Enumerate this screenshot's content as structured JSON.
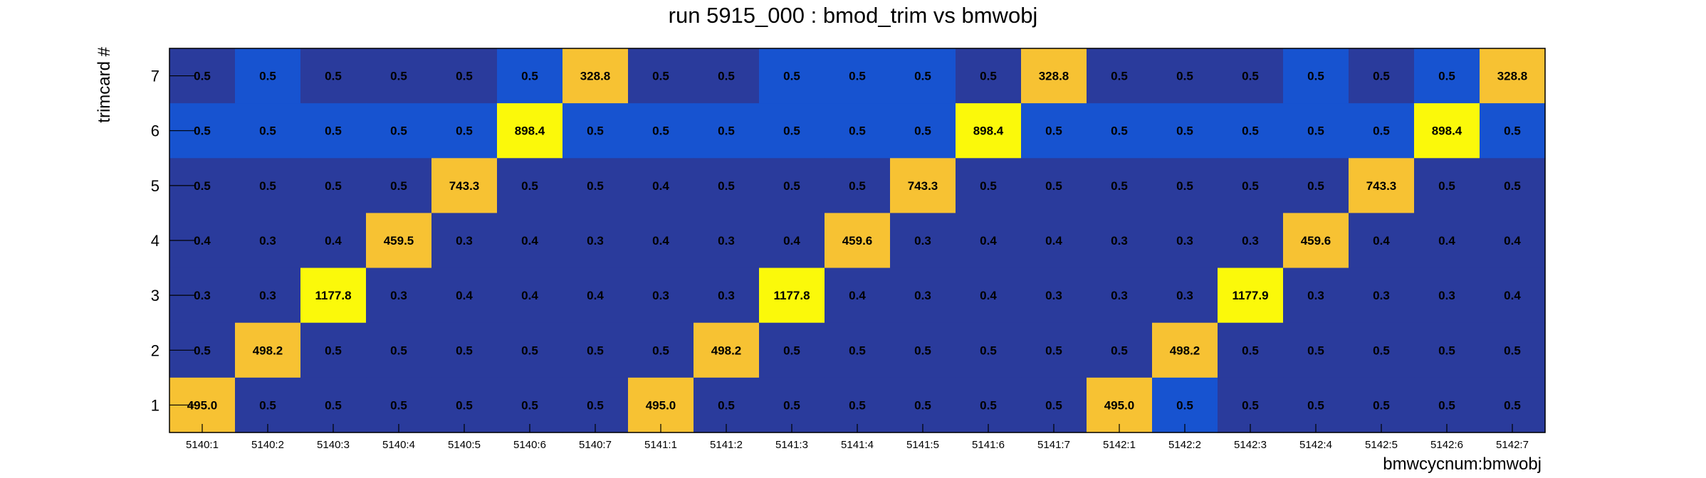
{
  "chart_data": {
    "type": "heatmap",
    "title": "run 5915_000 : bmod_trim vs bmwobj",
    "xlabel": "bmwcycnum:bmwobj",
    "ylabel": "trimcard #",
    "x_categories": [
      "5140:1",
      "5140:2",
      "5140:3",
      "5140:4",
      "5140:5",
      "5140:6",
      "5140:7",
      "5141:1",
      "5141:2",
      "5141:3",
      "5141:4",
      "5141:5",
      "5141:6",
      "5141:7",
      "5142:1",
      "5142:2",
      "5142:3",
      "5142:4",
      "5142:5",
      "5142:6",
      "5142:7"
    ],
    "y_categories": [
      "7",
      "6",
      "5",
      "4",
      "3",
      "2",
      "1"
    ],
    "labels": [
      [
        "0.5",
        "0.5",
        "0.5",
        "0.5",
        "0.5",
        "0.5",
        "328.8",
        "0.5",
        "0.5",
        "0.5",
        "0.5",
        "0.5",
        "0.5",
        "328.8",
        "0.5",
        "0.5",
        "0.5",
        "0.5",
        "0.5",
        "0.5",
        "328.8"
      ],
      [
        "0.5",
        "0.5",
        "0.5",
        "0.5",
        "0.5",
        "898.4",
        "0.5",
        "0.5",
        "0.5",
        "0.5",
        "0.5",
        "0.5",
        "898.4",
        "0.5",
        "0.5",
        "0.5",
        "0.5",
        "0.5",
        "0.5",
        "898.4",
        "0.5"
      ],
      [
        "0.5",
        "0.5",
        "0.5",
        "0.5",
        "743.3",
        "0.5",
        "0.5",
        "0.4",
        "0.5",
        "0.5",
        "0.5",
        "743.3",
        "0.5",
        "0.5",
        "0.5",
        "0.5",
        "0.5",
        "0.5",
        "743.3",
        "0.5",
        "0.5"
      ],
      [
        "0.4",
        "0.3",
        "0.4",
        "459.5",
        "0.3",
        "0.4",
        "0.3",
        "0.4",
        "0.3",
        "0.4",
        "459.6",
        "0.3",
        "0.4",
        "0.4",
        "0.3",
        "0.3",
        "0.3",
        "459.6",
        "0.4",
        "0.4",
        "0.4"
      ],
      [
        "0.3",
        "0.3",
        "1177.8",
        "0.3",
        "0.4",
        "0.4",
        "0.4",
        "0.3",
        "0.3",
        "1177.8",
        "0.4",
        "0.3",
        "0.4",
        "0.3",
        "0.3",
        "0.3",
        "1177.9",
        "0.3",
        "0.3",
        "0.3",
        "0.4"
      ],
      [
        "0.5",
        "498.2",
        "0.5",
        "0.5",
        "0.5",
        "0.5",
        "0.5",
        "0.5",
        "498.2",
        "0.5",
        "0.5",
        "0.5",
        "0.5",
        "0.5",
        "0.5",
        "498.2",
        "0.5",
        "0.5",
        "0.5",
        "0.5",
        "0.5"
      ],
      [
        "495.0",
        "0.5",
        "0.5",
        "0.5",
        "0.5",
        "0.5",
        "0.5",
        "495.0",
        "0.5",
        "0.5",
        "0.5",
        "0.5",
        "0.5",
        "0.5",
        "495.0",
        "0.5",
        "0.5",
        "0.5",
        "0.5",
        "0.5",
        "0.5"
      ]
    ],
    "colors": {
      "dark_blue": "#2a3b9c",
      "light_blue": "#1753d0",
      "gold": "#f7c233",
      "yellow": "#fbf90a"
    },
    "cell_colors": [
      [
        "dark_blue",
        "light_blue",
        "dark_blue",
        "dark_blue",
        "dark_blue",
        "light_blue",
        "gold",
        "dark_blue",
        "dark_blue",
        "light_blue",
        "light_blue",
        "light_blue",
        "dark_blue",
        "gold",
        "dark_blue",
        "dark_blue",
        "dark_blue",
        "light_blue",
        "dark_blue",
        "light_blue",
        "gold"
      ],
      [
        "light_blue",
        "light_blue",
        "light_blue",
        "light_blue",
        "light_blue",
        "yellow",
        "light_blue",
        "light_blue",
        "light_blue",
        "light_blue",
        "light_blue",
        "light_blue",
        "yellow",
        "light_blue",
        "light_blue",
        "light_blue",
        "light_blue",
        "light_blue",
        "light_blue",
        "yellow",
        "light_blue"
      ],
      [
        "dark_blue",
        "dark_blue",
        "dark_blue",
        "dark_blue",
        "gold",
        "dark_blue",
        "dark_blue",
        "dark_blue",
        "dark_blue",
        "dark_blue",
        "dark_blue",
        "gold",
        "dark_blue",
        "dark_blue",
        "dark_blue",
        "dark_blue",
        "dark_blue",
        "dark_blue",
        "gold",
        "dark_blue",
        "dark_blue"
      ],
      [
        "dark_blue",
        "dark_blue",
        "dark_blue",
        "gold",
        "dark_blue",
        "dark_blue",
        "dark_blue",
        "dark_blue",
        "dark_blue",
        "dark_blue",
        "gold",
        "dark_blue",
        "dark_blue",
        "dark_blue",
        "dark_blue",
        "dark_blue",
        "dark_blue",
        "gold",
        "dark_blue",
        "dark_blue",
        "dark_blue"
      ],
      [
        "dark_blue",
        "dark_blue",
        "yellow",
        "dark_blue",
        "dark_blue",
        "dark_blue",
        "dark_blue",
        "dark_blue",
        "dark_blue",
        "yellow",
        "dark_blue",
        "dark_blue",
        "dark_blue",
        "dark_blue",
        "dark_blue",
        "dark_blue",
        "yellow",
        "dark_blue",
        "dark_blue",
        "dark_blue",
        "dark_blue"
      ],
      [
        "dark_blue",
        "gold",
        "dark_blue",
        "dark_blue",
        "dark_blue",
        "dark_blue",
        "dark_blue",
        "dark_blue",
        "gold",
        "dark_blue",
        "dark_blue",
        "dark_blue",
        "dark_blue",
        "dark_blue",
        "dark_blue",
        "gold",
        "dark_blue",
        "dark_blue",
        "dark_blue",
        "dark_blue",
        "dark_blue"
      ],
      [
        "gold",
        "dark_blue",
        "dark_blue",
        "dark_blue",
        "dark_blue",
        "dark_blue",
        "dark_blue",
        "gold",
        "dark_blue",
        "dark_blue",
        "dark_blue",
        "dark_blue",
        "dark_blue",
        "dark_blue",
        "gold",
        "light_blue",
        "dark_blue",
        "dark_blue",
        "dark_blue",
        "dark_blue",
        "dark_blue"
      ]
    ],
    "legend": "none",
    "grid": false
  }
}
